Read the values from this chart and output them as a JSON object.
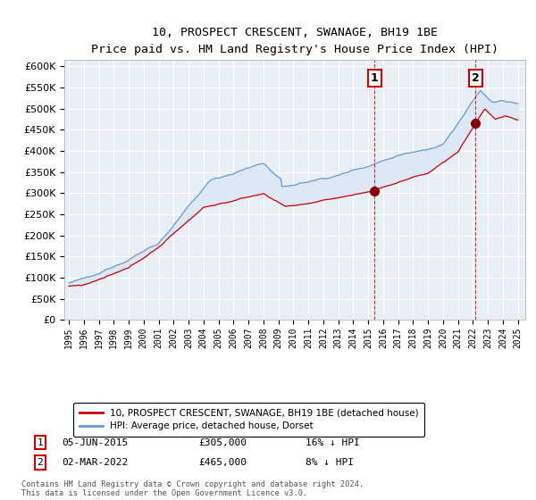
{
  "title": "10, PROSPECT CRESCENT, SWANAGE, BH19 1BE",
  "subtitle": "Price paid vs. HM Land Registry's House Price Index (HPI)",
  "ylabel_vals": [
    0,
    50000,
    100000,
    150000,
    200000,
    250000,
    300000,
    350000,
    400000,
    450000,
    500000,
    550000,
    600000
  ],
  "ylim": [
    0,
    615000
  ],
  "xlim_start": 1994.7,
  "xlim_end": 2025.5,
  "legend_line1": "10, PROSPECT CRESCENT, SWANAGE, BH19 1BE (detached house)",
  "legend_line2": "HPI: Average price, detached house, Dorset",
  "line1_color": "#cc0000",
  "line2_color": "#6699cc",
  "fill_color": "#dce8f5",
  "annotation1_date": 2015.42,
  "annotation1_price": 305000,
  "annotation1_label": "1",
  "annotation2_date": 2022.17,
  "annotation2_price": 465000,
  "annotation2_label": "2",
  "footnote_line1": "Contains HM Land Registry data © Crown copyright and database right 2024.",
  "footnote_line2": "This data is licensed under the Open Government Licence v3.0.",
  "table_row1": [
    "1",
    "05-JUN-2015",
    "£305,000",
    "16% ↓ HPI"
  ],
  "table_row2": [
    "2",
    "02-MAR-2022",
    "£465,000",
    "8% ↓ HPI"
  ],
  "bg_color": "#e8eef5"
}
